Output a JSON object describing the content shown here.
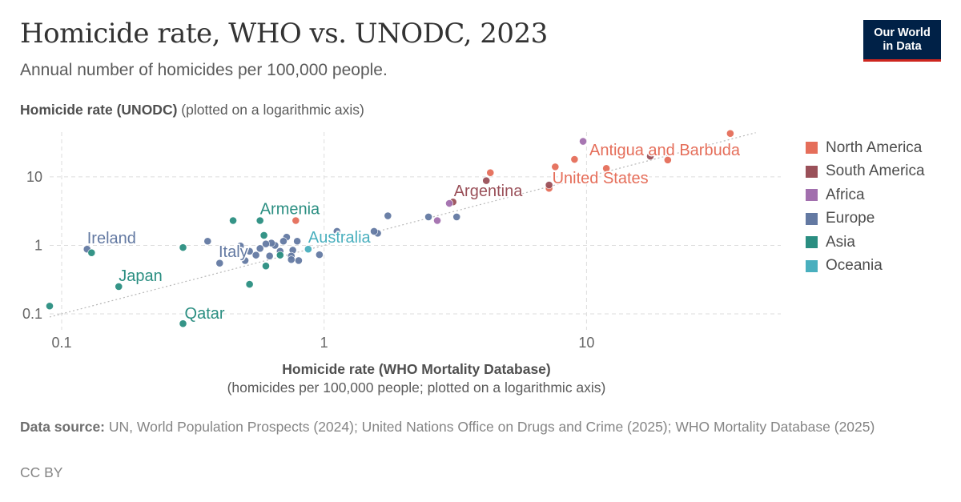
{
  "title": "Homicide rate, WHO vs. UNODC, 2023",
  "subtitle": "Annual number of homicides per 100,000 people.",
  "logo": {
    "line1": "Our World",
    "line2": "in Data"
  },
  "y_axis": {
    "bold": "Homicide rate (UNODC)",
    "note": "(plotted on a logarithmic axis)"
  },
  "x_axis": {
    "bold": "Homicide rate (WHO Mortality Database)",
    "note": "(homicides per 100,000 people; plotted on a logarithmic axis)"
  },
  "source": {
    "label": "Data source:",
    "text": "UN, World Population Prospects (2024); United Nations Office on Drugs and Crime (2025); WHO Mortality Database (2025)"
  },
  "license": "CC BY",
  "chart_data": {
    "type": "scatter",
    "x_scale": "log",
    "y_scale": "log",
    "xlim": [
      0.09,
      55
    ],
    "ylim": [
      0.065,
      45
    ],
    "x_ticks": [
      {
        "value": 0.1,
        "label": "0.1"
      },
      {
        "value": 1,
        "label": "1"
      },
      {
        "value": 10,
        "label": "10"
      }
    ],
    "y_ticks": [
      {
        "value": 0.1,
        "label": "0.1"
      },
      {
        "value": 1,
        "label": "1"
      },
      {
        "value": 10,
        "label": "10"
      }
    ],
    "grid": true,
    "reference_line": "y = x",
    "legend_position": "right",
    "regions": [
      {
        "name": "North America",
        "color": "#e56e5a"
      },
      {
        "name": "South America",
        "color": "#9a5059"
      },
      {
        "name": "Africa",
        "color": "#a26fae"
      },
      {
        "name": "Europe",
        "color": "#6379a2"
      },
      {
        "name": "Asia",
        "color": "#2a8e81"
      },
      {
        "name": "Oceania",
        "color": "#49afbe"
      }
    ],
    "labeled_points": [
      {
        "label": "Antigua and Barbuda",
        "region": "North America",
        "x": 30,
        "y": 18
      },
      {
        "label": "United States",
        "region": "North America",
        "x": 7.3,
        "y": 6.8
      },
      {
        "label": "Argentina",
        "region": "South America",
        "x": 3.1,
        "y": 4.3
      },
      {
        "label": "Armenia",
        "region": "Asia",
        "x": 0.57,
        "y": 2.3
      },
      {
        "label": "Australia",
        "region": "Oceania",
        "x": 0.87,
        "y": 0.88
      },
      {
        "label": "Ireland",
        "region": "Europe",
        "x": 0.125,
        "y": 0.88
      },
      {
        "label": "Italy",
        "region": "Europe",
        "x": 0.5,
        "y": 0.6
      },
      {
        "label": "Japan",
        "region": "Asia",
        "x": 0.165,
        "y": 0.25
      },
      {
        "label": "Qatar",
        "region": "Asia",
        "x": 0.29,
        "y": 0.072
      }
    ],
    "points": [
      {
        "region": "North America",
        "x": 35.3,
        "y": 43
      },
      {
        "region": "North America",
        "x": 20.4,
        "y": 17.6
      },
      {
        "region": "North America",
        "x": 11.9,
        "y": 13.3
      },
      {
        "region": "North America",
        "x": 9,
        "y": 18
      },
      {
        "region": "North America",
        "x": 7.6,
        "y": 14
      },
      {
        "region": "North America",
        "x": 7.2,
        "y": 6.8
      },
      {
        "region": "North America",
        "x": 4.3,
        "y": 11.5
      },
      {
        "region": "North America",
        "x": 0.78,
        "y": 2.3
      },
      {
        "region": "South America",
        "x": 17.5,
        "y": 20
      },
      {
        "region": "South America",
        "x": 7.2,
        "y": 7.6
      },
      {
        "region": "South America",
        "x": 4.15,
        "y": 8.8
      },
      {
        "region": "South America",
        "x": 3.1,
        "y": 4.3
      },
      {
        "region": "Africa",
        "x": 9.7,
        "y": 33
      },
      {
        "region": "Africa",
        "x": 3,
        "y": 4.1
      },
      {
        "region": "Africa",
        "x": 2.7,
        "y": 2.3
      },
      {
        "region": "Europe",
        "x": 3.2,
        "y": 2.6
      },
      {
        "region": "Europe",
        "x": 2.5,
        "y": 2.6
      },
      {
        "region": "Europe",
        "x": 1.75,
        "y": 2.7
      },
      {
        "region": "Europe",
        "x": 1.6,
        "y": 1.5
      },
      {
        "region": "Europe",
        "x": 1.55,
        "y": 1.6
      },
      {
        "region": "Europe",
        "x": 1.12,
        "y": 1.6
      },
      {
        "region": "Europe",
        "x": 0.96,
        "y": 0.73
      },
      {
        "region": "Europe",
        "x": 0.8,
        "y": 0.6
      },
      {
        "region": "Europe",
        "x": 0.79,
        "y": 1.15
      },
      {
        "region": "Europe",
        "x": 0.76,
        "y": 0.85
      },
      {
        "region": "Europe",
        "x": 0.75,
        "y": 0.7
      },
      {
        "region": "Europe",
        "x": 0.75,
        "y": 0.62
      },
      {
        "region": "Europe",
        "x": 0.72,
        "y": 1.32
      },
      {
        "region": "Europe",
        "x": 0.7,
        "y": 1.15
      },
      {
        "region": "Europe",
        "x": 0.68,
        "y": 0.82
      },
      {
        "region": "Europe",
        "x": 0.65,
        "y": 1.0
      },
      {
        "region": "Europe",
        "x": 0.63,
        "y": 1.08
      },
      {
        "region": "Europe",
        "x": 0.62,
        "y": 0.7
      },
      {
        "region": "Europe",
        "x": 0.6,
        "y": 1.05
      },
      {
        "region": "Europe",
        "x": 0.57,
        "y": 0.9
      },
      {
        "region": "Europe",
        "x": 0.55,
        "y": 0.72
      },
      {
        "region": "Europe",
        "x": 0.52,
        "y": 0.82
      },
      {
        "region": "Europe",
        "x": 0.5,
        "y": 0.6
      },
      {
        "region": "Europe",
        "x": 0.48,
        "y": 0.98
      },
      {
        "region": "Europe",
        "x": 0.4,
        "y": 0.55
      },
      {
        "region": "Europe",
        "x": 0.36,
        "y": 1.15
      },
      {
        "region": "Europe",
        "x": 0.125,
        "y": 0.88
      },
      {
        "region": "Asia",
        "x": 0.57,
        "y": 2.3
      },
      {
        "region": "Asia",
        "x": 0.45,
        "y": 2.3
      },
      {
        "region": "Asia",
        "x": 0.59,
        "y": 1.4
      },
      {
        "region": "Asia",
        "x": 0.68,
        "y": 0.72
      },
      {
        "region": "Asia",
        "x": 0.6,
        "y": 0.5
      },
      {
        "region": "Asia",
        "x": 0.52,
        "y": 0.27
      },
      {
        "region": "Asia",
        "x": 0.29,
        "y": 0.93
      },
      {
        "region": "Asia",
        "x": 0.29,
        "y": 0.072
      },
      {
        "region": "Asia",
        "x": 0.165,
        "y": 0.25
      },
      {
        "region": "Asia",
        "x": 0.13,
        "y": 0.78
      },
      {
        "region": "Asia",
        "x": 0.09,
        "y": 0.13
      },
      {
        "region": "Oceania",
        "x": 0.87,
        "y": 0.88
      }
    ]
  }
}
